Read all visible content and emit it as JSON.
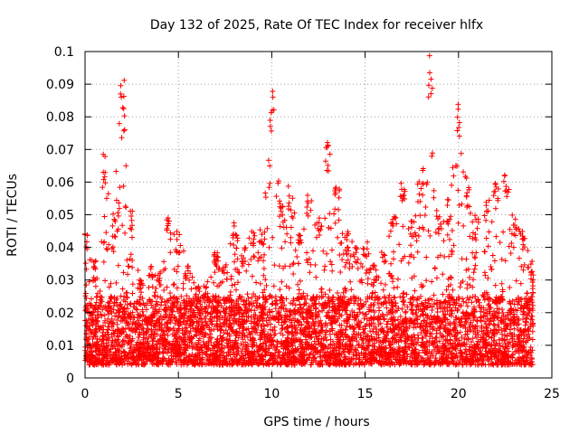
{
  "chart_data": {
    "type": "scatter",
    "title": "Day 132 of 2025, Rate Of TEC Index for receiver hlfx",
    "xlabel": "GPS time / hours",
    "ylabel": "ROTI / TECUs",
    "xlim": [
      0,
      25
    ],
    "ylim": [
      0,
      0.1
    ],
    "x_ticks": [
      0,
      5,
      10,
      15,
      20,
      25
    ],
    "y_ticks": [
      0,
      0.01,
      0.02,
      0.03,
      0.04,
      0.05,
      0.06,
      0.07,
      0.08,
      0.09,
      0.1
    ],
    "x_tick_labels": [
      "0",
      "5",
      "10",
      "15",
      "20",
      "25"
    ],
    "y_tick_labels": [
      "0",
      "0.01",
      "0.02",
      "0.03",
      "0.04",
      "0.05",
      "0.06",
      "0.07",
      "0.08",
      "0.09",
      "0.1"
    ],
    "grid": true,
    "marker": "+",
    "color": "#ff0000",
    "x_range_of_data": [
      0,
      24
    ],
    "envelope": [
      {
        "x": 0.0,
        "y": 0.045
      },
      {
        "x": 0.5,
        "y": 0.035
      },
      {
        "x": 1.0,
        "y": 0.069
      },
      {
        "x": 1.5,
        "y": 0.05
      },
      {
        "x": 2.0,
        "y": 0.094
      },
      {
        "x": 2.5,
        "y": 0.052
      },
      {
        "x": 3.0,
        "y": 0.03
      },
      {
        "x": 3.5,
        "y": 0.036
      },
      {
        "x": 4.0,
        "y": 0.033
      },
      {
        "x": 4.5,
        "y": 0.05
      },
      {
        "x": 5.0,
        "y": 0.045
      },
      {
        "x": 5.5,
        "y": 0.035
      },
      {
        "x": 6.0,
        "y": 0.028
      },
      {
        "x": 6.5,
        "y": 0.03
      },
      {
        "x": 7.0,
        "y": 0.04
      },
      {
        "x": 7.5,
        "y": 0.035
      },
      {
        "x": 8.0,
        "y": 0.048
      },
      {
        "x": 8.5,
        "y": 0.04
      },
      {
        "x": 9.0,
        "y": 0.045
      },
      {
        "x": 9.5,
        "y": 0.048
      },
      {
        "x": 10.0,
        "y": 0.088
      },
      {
        "x": 10.5,
        "y": 0.055
      },
      {
        "x": 11.0,
        "y": 0.06
      },
      {
        "x": 11.5,
        "y": 0.048
      },
      {
        "x": 12.0,
        "y": 0.058
      },
      {
        "x": 12.5,
        "y": 0.05
      },
      {
        "x": 13.0,
        "y": 0.073
      },
      {
        "x": 13.5,
        "y": 0.06
      },
      {
        "x": 14.0,
        "y": 0.045
      },
      {
        "x": 14.5,
        "y": 0.04
      },
      {
        "x": 15.0,
        "y": 0.043
      },
      {
        "x": 15.5,
        "y": 0.035
      },
      {
        "x": 16.0,
        "y": 0.04
      },
      {
        "x": 16.5,
        "y": 0.052
      },
      {
        "x": 17.0,
        "y": 0.06
      },
      {
        "x": 17.5,
        "y": 0.05
      },
      {
        "x": 18.0,
        "y": 0.065
      },
      {
        "x": 18.5,
        "y": 0.099
      },
      {
        "x": 19.0,
        "y": 0.05
      },
      {
        "x": 19.5,
        "y": 0.055
      },
      {
        "x": 20.0,
        "y": 0.085
      },
      {
        "x": 20.5,
        "y": 0.06
      },
      {
        "x": 21.0,
        "y": 0.05
      },
      {
        "x": 21.5,
        "y": 0.055
      },
      {
        "x": 22.0,
        "y": 0.06
      },
      {
        "x": 22.5,
        "y": 0.064
      },
      {
        "x": 23.0,
        "y": 0.05
      },
      {
        "x": 23.5,
        "y": 0.045
      },
      {
        "x": 24.0,
        "y": 0.035
      }
    ],
    "typical_band": [
      0.004,
      0.025
    ]
  }
}
